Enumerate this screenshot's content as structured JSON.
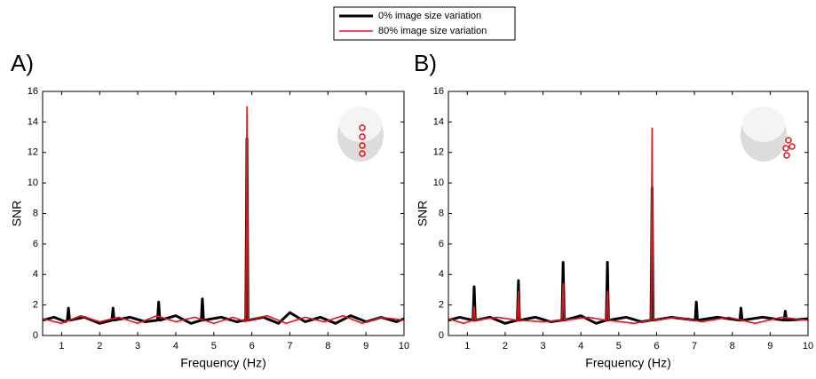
{
  "chart_data": [
    {
      "type": "line",
      "title": "A)",
      "xlabel": "Frequency (Hz)",
      "ylabel": "SNR",
      "xlim": [
        0.5,
        10
      ],
      "ylim": [
        0,
        16
      ],
      "xticks": [
        1,
        2,
        3,
        4,
        5,
        6,
        7,
        8,
        9,
        10
      ],
      "yticks": [
        0,
        2,
        4,
        6,
        8,
        10,
        12,
        14,
        16
      ],
      "series": [
        {
          "name": "0% image size variation",
          "color": "#000000",
          "x": [
            0.5,
            0.8,
            1.1,
            1.15,
            1.18,
            1.21,
            1.6,
            2.0,
            2.32,
            2.35,
            2.38,
            2.8,
            3.2,
            3.52,
            3.55,
            3.58,
            4.0,
            4.4,
            4.67,
            4.7,
            4.73,
            5.2,
            5.6,
            5.84,
            5.87,
            5.9,
            6.3,
            6.7,
            7.0,
            7.4,
            7.8,
            8.2,
            8.6,
            9.0,
            9.4,
            9.8,
            10
          ],
          "values": [
            1.0,
            1.2,
            0.9,
            1.0,
            1.8,
            1.0,
            1.2,
            0.8,
            1.0,
            1.8,
            1.0,
            1.2,
            0.9,
            1.0,
            2.2,
            1.0,
            1.3,
            0.8,
            1.0,
            2.4,
            1.0,
            1.2,
            0.9,
            1.0,
            12.9,
            1.0,
            1.2,
            0.8,
            1.5,
            0.9,
            1.2,
            0.8,
            1.3,
            0.9,
            1.2,
            0.9,
            1.1
          ]
        },
        {
          "name": "80% image size variation",
          "color": "#e8141b",
          "x": [
            0.5,
            1.0,
            1.5,
            2.0,
            2.5,
            3.0,
            3.5,
            4.0,
            4.5,
            5.0,
            5.5,
            5.84,
            5.87,
            5.9,
            6.4,
            6.9,
            7.4,
            7.9,
            8.4,
            8.9,
            9.4,
            10
          ],
          "values": [
            1.1,
            0.8,
            1.3,
            0.9,
            1.2,
            0.8,
            1.3,
            0.9,
            1.2,
            0.8,
            1.2,
            0.9,
            15.0,
            1.0,
            1.3,
            0.8,
            1.2,
            0.9,
            1.3,
            0.8,
            1.2,
            1.0
          ]
        }
      ]
    },
    {
      "type": "line",
      "title": "B)",
      "xlabel": "Frequency (Hz)",
      "ylabel": "SNR",
      "xlim": [
        0.5,
        10
      ],
      "ylim": [
        0,
        16
      ],
      "xticks": [
        1,
        2,
        3,
        4,
        5,
        6,
        7,
        8,
        9,
        10
      ],
      "yticks": [
        0,
        2,
        4,
        6,
        8,
        10,
        12,
        14,
        16
      ],
      "series": [
        {
          "name": "0% image size variation",
          "color": "#000000",
          "x": [
            0.5,
            0.8,
            1.15,
            1.18,
            1.21,
            1.6,
            2.0,
            2.32,
            2.35,
            2.38,
            2.8,
            3.2,
            3.5,
            3.53,
            3.56,
            4.0,
            4.4,
            4.67,
            4.7,
            4.73,
            5.2,
            5.6,
            5.85,
            5.88,
            5.91,
            6.4,
            7.02,
            7.05,
            7.08,
            7.6,
            8.2,
            8.23,
            8.26,
            8.8,
            9.37,
            9.4,
            9.43,
            10
          ],
          "values": [
            1.0,
            1.2,
            1.0,
            3.2,
            1.0,
            1.2,
            0.8,
            1.0,
            3.6,
            1.0,
            1.2,
            0.9,
            1.0,
            4.8,
            1.0,
            1.3,
            0.8,
            1.0,
            4.8,
            1.0,
            1.2,
            0.9,
            1.0,
            9.7,
            1.0,
            1.2,
            1.0,
            2.2,
            1.0,
            1.2,
            1.0,
            1.8,
            1.0,
            1.2,
            1.0,
            1.6,
            1.0,
            1.1
          ]
        },
        {
          "name": "80% image size variation",
          "color": "#e8141b",
          "x": [
            0.5,
            0.9,
            1.15,
            1.18,
            1.21,
            1.8,
            2.32,
            2.35,
            2.38,
            3.0,
            3.5,
            3.53,
            3.56,
            4.2,
            4.67,
            4.7,
            4.73,
            5.4,
            5.85,
            5.88,
            5.91,
            6.5,
            7.2,
            7.9,
            8.6,
            9.3,
            10
          ],
          "values": [
            1.1,
            0.8,
            1.0,
            1.9,
            1.0,
            1.2,
            1.0,
            2.9,
            1.0,
            0.9,
            1.0,
            3.4,
            1.0,
            1.2,
            1.0,
            2.9,
            1.0,
            0.8,
            1.0,
            13.6,
            1.0,
            1.2,
            0.9,
            1.2,
            0.8,
            1.2,
            1.0
          ]
        }
      ]
    }
  ]
}
